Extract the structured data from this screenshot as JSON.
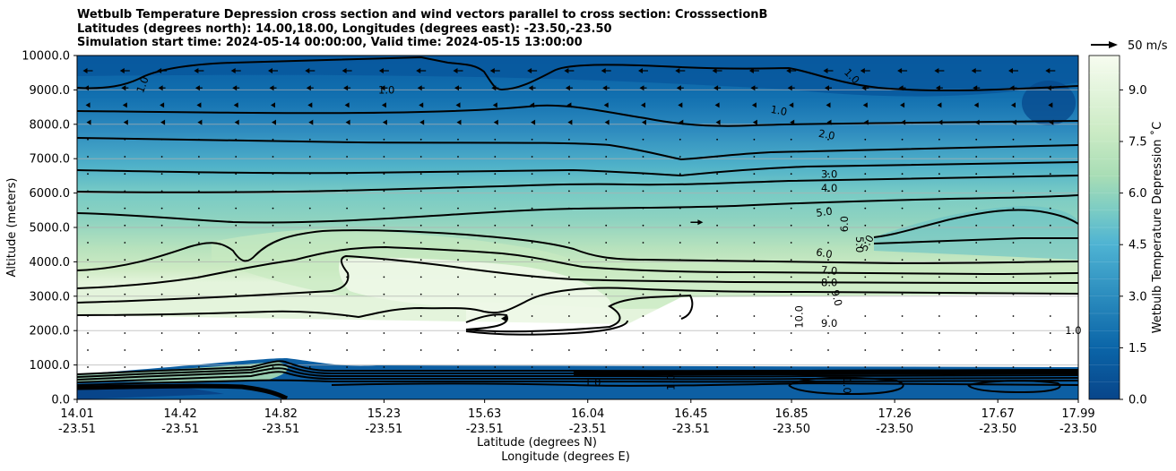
{
  "title_lines": [
    "Wetbulb Temperature Depression cross section and wind vectors parallel to cross section: CrosssectionB",
    "Latitudes (degrees north): 14.00,18.00, Longitudes (degrees east): -23.50,-23.50",
    "Simulation start time: 2024-05-14 00:00:00, Valid time: 2024-05-15 13:00:00"
  ],
  "chart_data": {
    "type": "contour",
    "title": "Wetbulb Temperature Depression cross section and wind vectors parallel to cross section: CrosssectionB",
    "ylabel": "Altitude (meters)",
    "xlabel": "Latitude (degrees N)",
    "xlabel2": "Longitude (degrees E)",
    "ylim": [
      0,
      10000
    ],
    "xlim": [
      14.01,
      17.99
    ],
    "y_ticks": [
      "0.0",
      "1000.0",
      "2000.0",
      "3000.0",
      "4000.0",
      "5000.0",
      "6000.0",
      "7000.0",
      "8000.0",
      "9000.0",
      "10000.0"
    ],
    "y_tick_values": [
      0,
      1000,
      2000,
      3000,
      4000,
      5000,
      6000,
      7000,
      8000,
      9000,
      10000
    ],
    "x_ticks": [
      {
        "lat": "14.01",
        "lon": "-23.51",
        "v": 14.01
      },
      {
        "lat": "14.42",
        "lon": "-23.51",
        "v": 14.42
      },
      {
        "lat": "14.82",
        "lon": "-23.51",
        "v": 14.82
      },
      {
        "lat": "15.23",
        "lon": "-23.51",
        "v": 15.23
      },
      {
        "lat": "15.63",
        "lon": "-23.51",
        "v": 15.63
      },
      {
        "lat": "16.04",
        "lon": "-23.51",
        "v": 16.04
      },
      {
        "lat": "16.45",
        "lon": "-23.51",
        "v": 16.45
      },
      {
        "lat": "16.85",
        "lon": "-23.50",
        "v": 16.85
      },
      {
        "lat": "17.26",
        "lon": "-23.50",
        "v": 17.26
      },
      {
        "lat": "17.67",
        "lon": "-23.50",
        "v": 17.67
      },
      {
        "lat": "17.99",
        "lon": "-23.50",
        "v": 17.99
      }
    ],
    "colorbar": {
      "label": "Wetbulb Temperature Depression ˚C",
      "range": [
        0,
        10
      ],
      "ticks": [
        "0.0",
        "1.5",
        "3.0",
        "4.5",
        "6.0",
        "7.5",
        "9.0"
      ],
      "tick_values": [
        0,
        1.5,
        3.0,
        4.5,
        6.0,
        7.5,
        9.0
      ],
      "colormap": [
        "#08589e",
        "#2b8cbe",
        "#4eb3d3",
        "#7bccc4",
        "#a8ddb5",
        "#ccebc5",
        "#f7fcf0"
      ]
    },
    "wind_key": {
      "label": "50 m/s",
      "speed": 50
    },
    "contour_levels": [
      1.0,
      2.0,
      3.0,
      4.0,
      5.0,
      6.0,
      7.0,
      8.0,
      9.0,
      10.0
    ],
    "contour_labels": [
      {
        "text": "1.0",
        "lat": 14.27,
        "alt": 9150,
        "rot": -70
      },
      {
        "text": "1.0",
        "lat": 15.24,
        "alt": 9000,
        "rot": 0
      },
      {
        "text": "1.0",
        "lat": 16.8,
        "alt": 8400,
        "rot": 10
      },
      {
        "text": "1.0",
        "lat": 17.09,
        "alt": 9400,
        "rot": 45
      },
      {
        "text": "2.0",
        "lat": 16.99,
        "alt": 7700,
        "rot": 10
      },
      {
        "text": "3.0",
        "lat": 17.0,
        "alt": 6550,
        "rot": 0
      },
      {
        "text": "4.0",
        "lat": 17.0,
        "alt": 6150,
        "rot": 0
      },
      {
        "text": "5.0",
        "lat": 16.98,
        "alt": 5450,
        "rot": -8
      },
      {
        "text": "6.0",
        "lat": 16.98,
        "alt": 4250,
        "rot": 10
      },
      {
        "text": "7.0",
        "lat": 17.0,
        "alt": 3750,
        "rot": 5
      },
      {
        "text": "8.0",
        "lat": 17.0,
        "alt": 3400,
        "rot": 0
      },
      {
        "text": "9.0",
        "lat": 17.0,
        "alt": 2220,
        "rot": 0
      },
      {
        "text": "9.0",
        "lat": 17.03,
        "alt": 2950,
        "rot": 75
      },
      {
        "text": "10.0",
        "lat": 16.88,
        "alt": 2400,
        "rot": -90
      },
      {
        "text": "6.0",
        "lat": 17.06,
        "alt": 5100,
        "rot": -90
      },
      {
        "text": "5.0",
        "lat": 17.12,
        "alt": 4500,
        "rot": 90
      },
      {
        "text": "5.0",
        "lat": 17.15,
        "alt": 4550,
        "rot": -60
      },
      {
        "text": "1.0",
        "lat": 17.97,
        "alt": 2000,
        "rot": 0
      },
      {
        "text": "1.0",
        "lat": 16.06,
        "alt": 500,
        "rot": 0
      },
      {
        "text": "1.0",
        "lat": 16.37,
        "alt": 500,
        "rot": -90
      },
      {
        "text": "1.0",
        "lat": 17.07,
        "alt": 400,
        "rot": 90
      }
    ]
  }
}
